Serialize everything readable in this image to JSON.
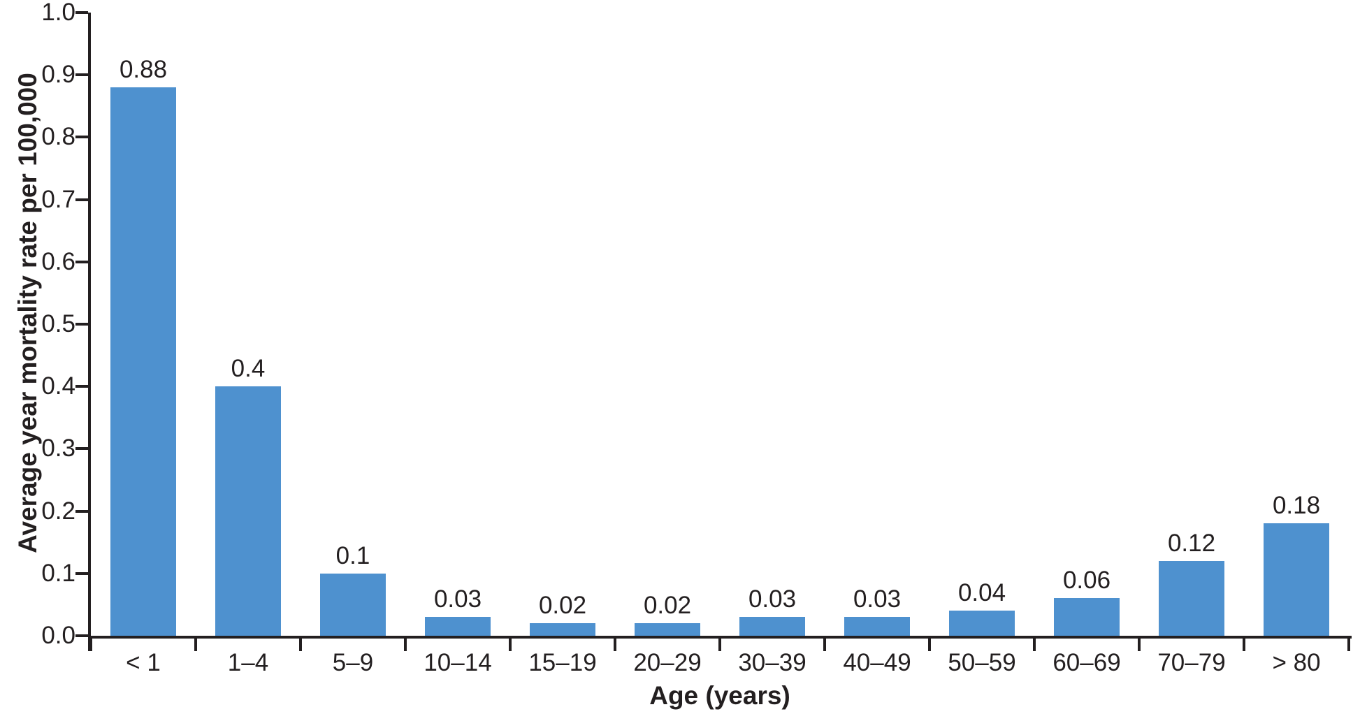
{
  "chart_data": {
    "type": "bar",
    "title": "",
    "categories": [
      "< 1",
      "1–4",
      "5–9",
      "10–14",
      "15–19",
      "20–29",
      "30–39",
      "40–49",
      "50–59",
      "60–69",
      "70–79",
      "> 80"
    ],
    "values": [
      0.88,
      0.4,
      0.1,
      0.03,
      0.02,
      0.02,
      0.03,
      0.03,
      0.04,
      0.06,
      0.12,
      0.18
    ],
    "bar_value_labels": [
      "0.88",
      "0.4",
      "0.1",
      "0.03",
      "0.02",
      "0.02",
      "0.03",
      "0.03",
      "0.04",
      "0.06",
      "0.12",
      "0.18"
    ],
    "xlabel": "Age (years)",
    "ylabel": "Average year mortality rate per 100,000",
    "ylim": [
      0.0,
      1.0
    ],
    "ytick_step": 0.1,
    "ytick_labels": [
      "0.0",
      "0.1",
      "0.2",
      "0.3",
      "0.4",
      "0.5",
      "0.6",
      "0.7",
      "0.8",
      "0.9",
      "1.0"
    ],
    "grid": false,
    "legend": "none",
    "colors": {
      "bar": "#4E91CF",
      "axis": "#231F20",
      "text": "#231F20",
      "background": "#FFFFFF"
    }
  }
}
